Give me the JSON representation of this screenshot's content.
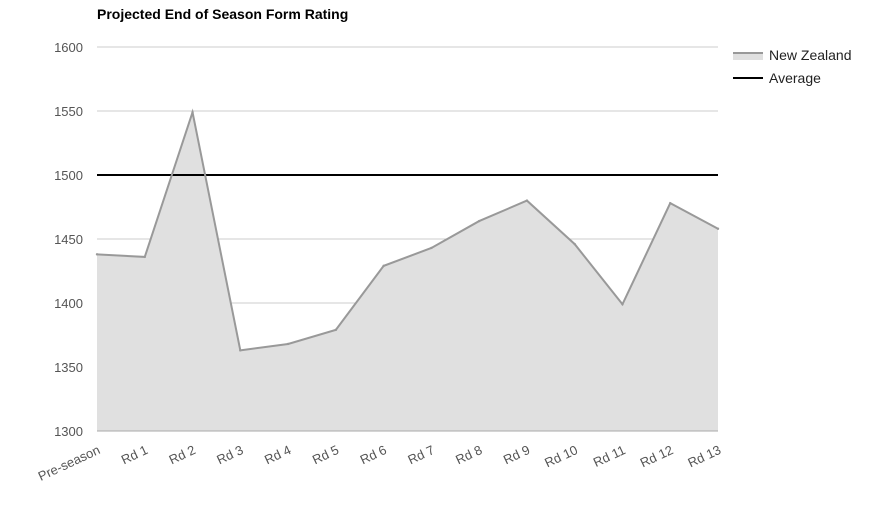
{
  "chart_data": {
    "type": "area",
    "title": "Projected End of Season Form Rating",
    "xlabel": "",
    "ylabel": "",
    "categories": [
      "Pre-season",
      "Rd 1",
      "Rd 2",
      "Rd 3",
      "Rd 4",
      "Rd 5",
      "Rd 6",
      "Rd 7",
      "Rd 8",
      "Rd 9",
      "Rd 10",
      "Rd 11",
      "Rd 12",
      "Rd 13"
    ],
    "series": [
      {
        "name": "New Zealand",
        "kind": "area",
        "values": [
          1438,
          1436,
          1549,
          1363,
          1368,
          1379,
          1429,
          1443,
          1464,
          1480,
          1446,
          1399,
          1478,
          1458
        ],
        "color": "#999999",
        "fill": "#e0e0e0"
      },
      {
        "name": "Average",
        "kind": "line",
        "values": [
          1500,
          1500,
          1500,
          1500,
          1500,
          1500,
          1500,
          1500,
          1500,
          1500,
          1500,
          1500,
          1500,
          1500
        ],
        "color": "#000000"
      }
    ],
    "yticks": [
      1300,
      1350,
      1400,
      1450,
      1500,
      1550,
      1600
    ],
    "ylim": [
      1300,
      1600
    ],
    "grid": true,
    "legend": "right"
  }
}
